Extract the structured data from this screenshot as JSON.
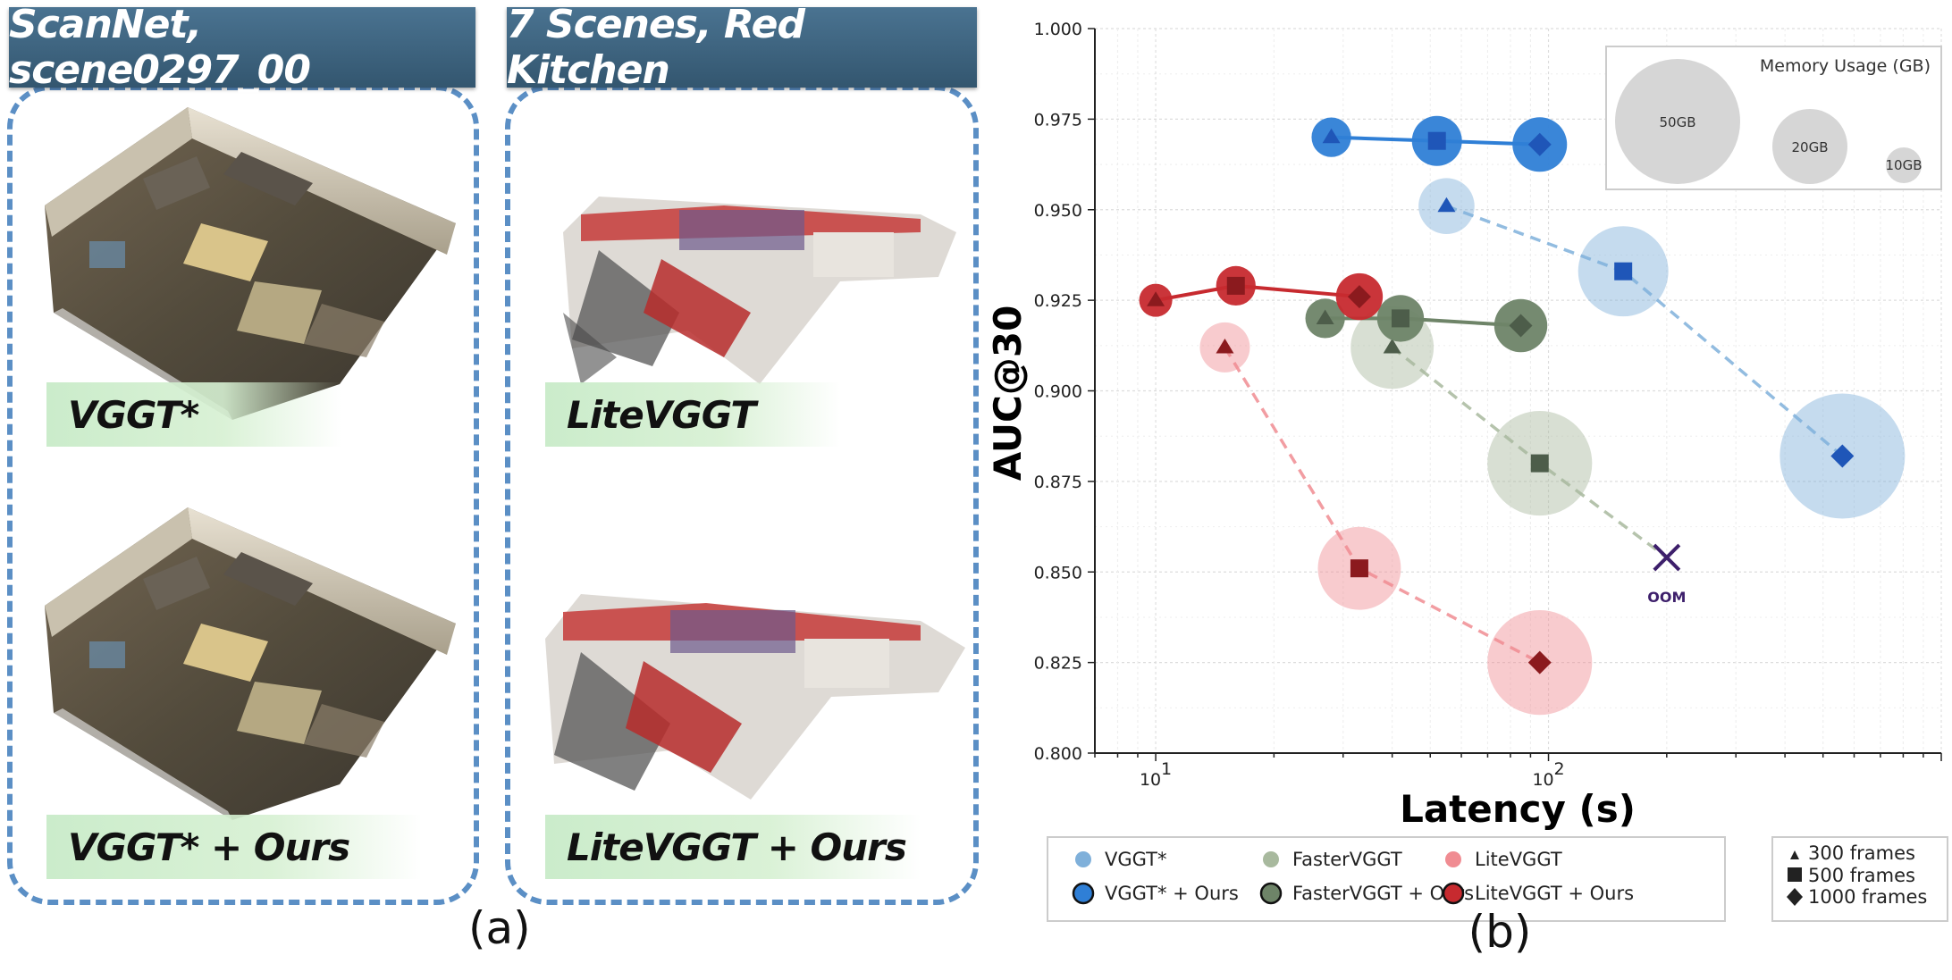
{
  "panel_a": {
    "left_title": "ScanNet, scene0297_00",
    "right_title": "7 Scenes, Red Kitchen",
    "labels": {
      "top_left": "VGGT*",
      "bottom_left": "VGGT* + Ours",
      "top_right": "LiteVGGT",
      "bottom_right": "LiteVGGT + Ours"
    },
    "caption": "(a)"
  },
  "panel_b": {
    "caption": "(b)",
    "oom_label": "OOM",
    "memory_legend": {
      "title": "Memory Usage (GB)",
      "items": [
        "50GB",
        "20GB",
        "10GB"
      ]
    },
    "frames_legend": [
      "300 frames",
      "500 frames",
      "1000 frames"
    ],
    "colors": {
      "vggt": "#7fb0da",
      "vggt_ours": "#2f7fd6",
      "faster": "#a8b99e",
      "faster_ours": "#6e8468",
      "lite": "#f08c92",
      "lite_ours": "#c72a2f",
      "oom": "#3d1f6b"
    }
  },
  "chart_data": {
    "type": "scatter",
    "title": "",
    "xlabel": "Latency (s)",
    "ylabel": "AUC@30",
    "xscale": "log",
    "xlim": [
      7,
      1000
    ],
    "ylim": [
      0.8,
      1.0
    ],
    "yticks": [
      "0.800",
      "0.825",
      "0.850",
      "0.875",
      "0.900",
      "0.925",
      "0.950",
      "0.975",
      "1.000"
    ],
    "xticks": [
      {
        "value": 10,
        "label": "10",
        "exp": "1"
      },
      {
        "value": 100,
        "label": "10",
        "exp": "2"
      }
    ],
    "grid": true,
    "legend_placement": "bottom",
    "series": [
      {
        "name": "VGGT*",
        "style": "dashed",
        "color_key": "vggt",
        "marker_color": "#1f56b8",
        "points": [
          {
            "frames": 300,
            "x": 55,
            "y": 0.951,
            "memory": 10
          },
          {
            "frames": 500,
            "x": 155,
            "y": 0.933,
            "memory": 26
          },
          {
            "frames": 1000,
            "x": 560,
            "y": 0.882,
            "memory": 50
          }
        ]
      },
      {
        "name": "VGGT* + Ours",
        "style": "solid",
        "color_key": "vggt_ours",
        "marker_color": "#1f56b8",
        "points": [
          {
            "frames": 300,
            "x": 28,
            "y": 0.97,
            "memory": 5
          },
          {
            "frames": 500,
            "x": 52,
            "y": 0.969,
            "memory": 8
          },
          {
            "frames": 1000,
            "x": 95,
            "y": 0.968,
            "memory": 9.5
          }
        ]
      },
      {
        "name": "FasterVGGT",
        "style": "dashed",
        "color_key": "faster",
        "marker_color": "#4d5d4a",
        "points": [
          {
            "frames": 300,
            "x": 40,
            "y": 0.912,
            "memory": 22
          },
          {
            "frames": 500,
            "x": 95,
            "y": 0.88,
            "memory": 35
          },
          {
            "frames": 1000,
            "x": 200,
            "y": 0.854,
            "memory": null,
            "oom": true
          }
        ]
      },
      {
        "name": "FasterVGGT + Ours",
        "style": "solid",
        "color_key": "faster_ours",
        "marker_color": "#4d5d4a",
        "points": [
          {
            "frames": 300,
            "x": 27,
            "y": 0.92,
            "memory": 5
          },
          {
            "frames": 500,
            "x": 42,
            "y": 0.92,
            "memory": 7
          },
          {
            "frames": 1000,
            "x": 85,
            "y": 0.918,
            "memory": 9
          }
        ]
      },
      {
        "name": "LiteVGGT",
        "style": "dashed",
        "color_key": "lite",
        "marker_color": "#8b1a1e",
        "points": [
          {
            "frames": 300,
            "x": 15,
            "y": 0.912,
            "memory": 8
          },
          {
            "frames": 500,
            "x": 33,
            "y": 0.851,
            "memory": 22
          },
          {
            "frames": 1000,
            "x": 95,
            "y": 0.825,
            "memory": 35
          }
        ]
      },
      {
        "name": "LiteVGGT + Ours",
        "style": "solid",
        "color_key": "lite_ours",
        "marker_color": "#8b1a1e",
        "points": [
          {
            "frames": 300,
            "x": 10,
            "y": 0.925,
            "memory": 3.5
          },
          {
            "frames": 500,
            "x": 16,
            "y": 0.929,
            "memory": 5
          },
          {
            "frames": 1000,
            "x": 33,
            "y": 0.926,
            "memory": 7
          }
        ]
      }
    ]
  }
}
